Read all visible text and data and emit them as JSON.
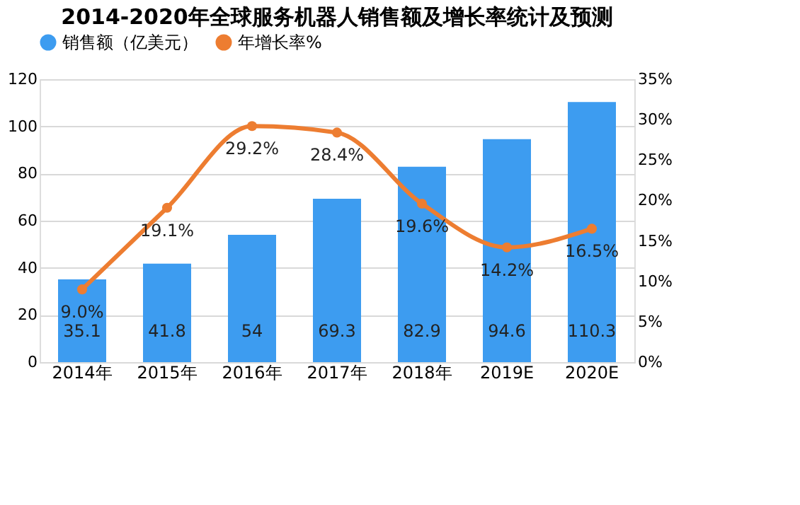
{
  "chart_data": {
    "type": "bar",
    "title": "2014-2020年全球服务机器人销售额及增长率统计及预测",
    "categories": [
      "2014年",
      "2015年",
      "2016年",
      "2017年",
      "2018年",
      "2019E",
      "2020E"
    ],
    "series": [
      {
        "name": "销售额（亿美元）",
        "color": "#3d9cf0",
        "values": [
          35.1,
          41.8,
          54,
          69.3,
          82.9,
          94.6,
          110.3
        ],
        "value_labels": [
          "35.1",
          "41.8",
          "54",
          "69.3",
          "82.9",
          "94.6",
          "110.3"
        ]
      },
      {
        "name": "年增长率%",
        "type": "line",
        "axis": "y2",
        "color": "#ed7d31",
        "marker": "circle",
        "line_style": "solid",
        "values": [
          9.0,
          19.1,
          29.2,
          28.4,
          19.6,
          14.2,
          16.5
        ],
        "value_labels": [
          "9.0%",
          "19.1%",
          "29.2%",
          "28.4%",
          "19.6%",
          "14.2%",
          "16.5%"
        ]
      }
    ],
    "ylim": [
      0,
      120
    ],
    "yticks": [
      0,
      20,
      40,
      60,
      80,
      100,
      120
    ],
    "y2lim": [
      0,
      35
    ],
    "y2ticks": [
      {
        "value": 0,
        "label": "0%"
      },
      {
        "value": 5,
        "label": "5%"
      },
      {
        "value": 10,
        "label": "10%"
      },
      {
        "value": 15,
        "label": "15%"
      },
      {
        "value": 20,
        "label": "20%"
      },
      {
        "value": 25,
        "label": "25%"
      },
      {
        "value": 30,
        "label": "30%"
      },
      {
        "value": 35,
        "label": "35%"
      }
    ],
    "grid": "y",
    "legend": "top"
  }
}
